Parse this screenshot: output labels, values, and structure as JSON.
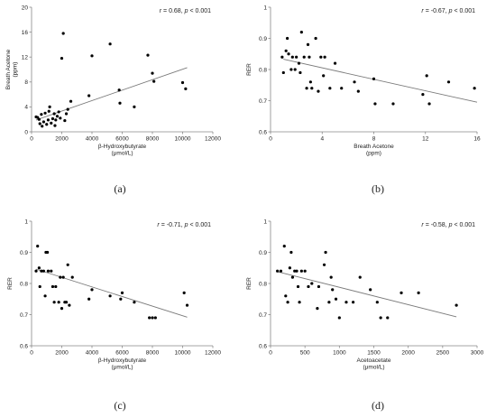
{
  "chart_data": [
    {
      "type": "scatter",
      "panel_label": "(a)",
      "xlabel": [
        "β-Hydroxybutyrate",
        "(μmol/L)"
      ],
      "ylabel": [
        "Breath Acetone",
        "(ppm)"
      ],
      "annotation": {
        "r_sym": "r",
        "r_val": " = 0.68, ",
        "p_sym": "p",
        "p_val": " < 0.001"
      },
      "xlim": [
        0,
        12000
      ],
      "ylim": [
        0,
        20
      ],
      "xticks": [
        0,
        2000,
        4000,
        6000,
        8000,
        10000,
        12000
      ],
      "yticks": [
        0,
        4,
        8,
        12,
        16,
        20
      ],
      "grid": false,
      "trendline": [
        [
          300,
          1.9
        ],
        [
          10300,
          10.3
        ]
      ],
      "points": [
        [
          300,
          2.4
        ],
        [
          400,
          2.3
        ],
        [
          500,
          2.0
        ],
        [
          550,
          1.3
        ],
        [
          650,
          2.8
        ],
        [
          700,
          0.9
        ],
        [
          800,
          1.6
        ],
        [
          900,
          3.0
        ],
        [
          1000,
          1.2
        ],
        [
          1100,
          1.9
        ],
        [
          1150,
          3.3
        ],
        [
          1200,
          4.0
        ],
        [
          1300,
          1.4
        ],
        [
          1400,
          2.1
        ],
        [
          1500,
          2.9
        ],
        [
          1550,
          1.0
        ],
        [
          1600,
          1.9
        ],
        [
          1700,
          2.5
        ],
        [
          1800,
          3.2
        ],
        [
          1900,
          2.2
        ],
        [
          2000,
          11.8
        ],
        [
          2100,
          15.8
        ],
        [
          2200,
          1.8
        ],
        [
          2300,
          2.9
        ],
        [
          2400,
          3.6
        ],
        [
          2600,
          4.9
        ],
        [
          3800,
          5.8
        ],
        [
          4000,
          12.2
        ],
        [
          5200,
          14.1
        ],
        [
          5800,
          6.7
        ],
        [
          5850,
          4.6
        ],
        [
          6800,
          4.0
        ],
        [
          7700,
          12.3
        ],
        [
          8000,
          9.4
        ],
        [
          8100,
          8.1
        ],
        [
          10000,
          7.9
        ],
        [
          10200,
          6.9
        ]
      ]
    },
    {
      "type": "scatter",
      "panel_label": "(b)",
      "xlabel": [
        "Breath Acetone",
        "(ppm)"
      ],
      "ylabel": [
        "RER"
      ],
      "annotation": {
        "r_sym": "r",
        "r_val": " = -0.67, ",
        "p_sym": "p",
        "p_val": " < 0.001"
      },
      "xlim": [
        0,
        16
      ],
      "ylim": [
        0.6,
        1.0
      ],
      "xticks": [
        0,
        4,
        8,
        12,
        16
      ],
      "yticks": [
        0.6,
        0.7,
        0.8,
        0.9,
        1.0
      ],
      "ytick_labels": [
        "0.6",
        "0.7",
        "0.8",
        "0.9",
        "1"
      ],
      "grid": false,
      "trendline": [
        [
          1,
          0.833
        ],
        [
          16,
          0.695
        ]
      ],
      "points": [
        [
          0.9,
          0.84
        ],
        [
          1.0,
          0.79
        ],
        [
          1.2,
          0.86
        ],
        [
          1.3,
          0.9
        ],
        [
          1.4,
          0.85
        ],
        [
          1.6,
          0.8
        ],
        [
          1.7,
          0.84
        ],
        [
          1.9,
          0.8
        ],
        [
          2.0,
          0.84
        ],
        [
          2.2,
          0.82
        ],
        [
          2.3,
          0.79
        ],
        [
          2.4,
          0.92
        ],
        [
          2.6,
          0.84
        ],
        [
          2.8,
          0.74
        ],
        [
          2.9,
          0.88
        ],
        [
          3.0,
          0.84
        ],
        [
          3.1,
          0.76
        ],
        [
          3.2,
          0.74
        ],
        [
          3.5,
          0.9
        ],
        [
          3.7,
          0.73
        ],
        [
          3.9,
          0.84
        ],
        [
          4.1,
          0.78
        ],
        [
          4.2,
          0.84
        ],
        [
          4.6,
          0.74
        ],
        [
          5.0,
          0.82
        ],
        [
          5.5,
          0.74
        ],
        [
          6.5,
          0.76
        ],
        [
          6.8,
          0.73
        ],
        [
          8.0,
          0.77
        ],
        [
          8.1,
          0.69
        ],
        [
          9.5,
          0.69
        ],
        [
          11.8,
          0.72
        ],
        [
          12.1,
          0.78
        ],
        [
          12.3,
          0.69
        ],
        [
          13.8,
          0.76
        ],
        [
          15.8,
          0.74
        ]
      ]
    },
    {
      "type": "scatter",
      "panel_label": "(c)",
      "xlabel": [
        "β-Hydroxybutyrate",
        "(μmol/L)"
      ],
      "ylabel": [
        "RER"
      ],
      "annotation": {
        "r_sym": "r",
        "r_val": " = -0.71, ",
        "p_sym": "p",
        "p_val": " < 0.001"
      },
      "xlim": [
        0,
        12000
      ],
      "ylim": [
        0.6,
        1.0
      ],
      "xticks": [
        0,
        2000,
        4000,
        6000,
        8000,
        10000,
        12000
      ],
      "yticks": [
        0.6,
        0.7,
        0.8,
        0.9,
        1.0
      ],
      "ytick_labels": [
        "0.6",
        "0.7",
        "0.8",
        "0.9",
        "1"
      ],
      "grid": false,
      "trendline": [
        [
          300,
          0.846
        ],
        [
          10300,
          0.692
        ]
      ],
      "points": [
        [
          300,
          0.84
        ],
        [
          400,
          0.92
        ],
        [
          500,
          0.85
        ],
        [
          550,
          0.79
        ],
        [
          650,
          0.84
        ],
        [
          800,
          0.84
        ],
        [
          900,
          0.76
        ],
        [
          950,
          0.9
        ],
        [
          1050,
          0.9
        ],
        [
          1100,
          0.84
        ],
        [
          1300,
          0.84
        ],
        [
          1400,
          0.79
        ],
        [
          1500,
          0.74
        ],
        [
          1600,
          0.79
        ],
        [
          1800,
          0.74
        ],
        [
          1900,
          0.82
        ],
        [
          2000,
          0.72
        ],
        [
          2100,
          0.82
        ],
        [
          2200,
          0.74
        ],
        [
          2300,
          0.74
        ],
        [
          2400,
          0.86
        ],
        [
          2500,
          0.73
        ],
        [
          2700,
          0.82
        ],
        [
          3800,
          0.75
        ],
        [
          4000,
          0.78
        ],
        [
          5200,
          0.76
        ],
        [
          5900,
          0.75
        ],
        [
          6000,
          0.77
        ],
        [
          6800,
          0.74
        ],
        [
          7800,
          0.69
        ],
        [
          8000,
          0.69
        ],
        [
          8200,
          0.69
        ],
        [
          10100,
          0.77
        ],
        [
          10300,
          0.73
        ]
      ]
    },
    {
      "type": "scatter",
      "panel_label": "(d)",
      "xlabel": [
        "Acetoacetate",
        "(μmol/L)"
      ],
      "ylabel": [
        "RER"
      ],
      "annotation": {
        "r_sym": "r",
        "r_val": " = -0.58, ",
        "p_sym": "p",
        "p_val": " < 0.001"
      },
      "xlim": [
        0,
        3000
      ],
      "ylim": [
        0.6,
        1.0
      ],
      "xticks": [
        0,
        500,
        1000,
        1500,
        2000,
        2500,
        3000
      ],
      "yticks": [
        0.6,
        0.7,
        0.8,
        0.9,
        1.0
      ],
      "ytick_labels": [
        "0.6",
        "0.7",
        "0.8",
        "0.9",
        "1"
      ],
      "grid": false,
      "trendline": [
        [
          100,
          0.838
        ],
        [
          2700,
          0.693
        ]
      ],
      "points": [
        [
          100,
          0.84
        ],
        [
          150,
          0.84
        ],
        [
          200,
          0.92
        ],
        [
          220,
          0.76
        ],
        [
          250,
          0.74
        ],
        [
          280,
          0.85
        ],
        [
          300,
          0.9
        ],
        [
          320,
          0.82
        ],
        [
          350,
          0.84
        ],
        [
          380,
          0.84
        ],
        [
          400,
          0.79
        ],
        [
          420,
          0.74
        ],
        [
          450,
          0.84
        ],
        [
          500,
          0.84
        ],
        [
          550,
          0.79
        ],
        [
          600,
          0.8
        ],
        [
          680,
          0.72
        ],
        [
          700,
          0.79
        ],
        [
          780,
          0.86
        ],
        [
          800,
          0.9
        ],
        [
          850,
          0.74
        ],
        [
          880,
          0.82
        ],
        [
          900,
          0.78
        ],
        [
          950,
          0.75
        ],
        [
          1000,
          0.69
        ],
        [
          1100,
          0.74
        ],
        [
          1200,
          0.74
        ],
        [
          1300,
          0.82
        ],
        [
          1450,
          0.78
        ],
        [
          1550,
          0.74
        ],
        [
          1600,
          0.69
        ],
        [
          1700,
          0.69
        ],
        [
          1900,
          0.77
        ],
        [
          2150,
          0.77
        ],
        [
          2700,
          0.73
        ]
      ]
    }
  ]
}
